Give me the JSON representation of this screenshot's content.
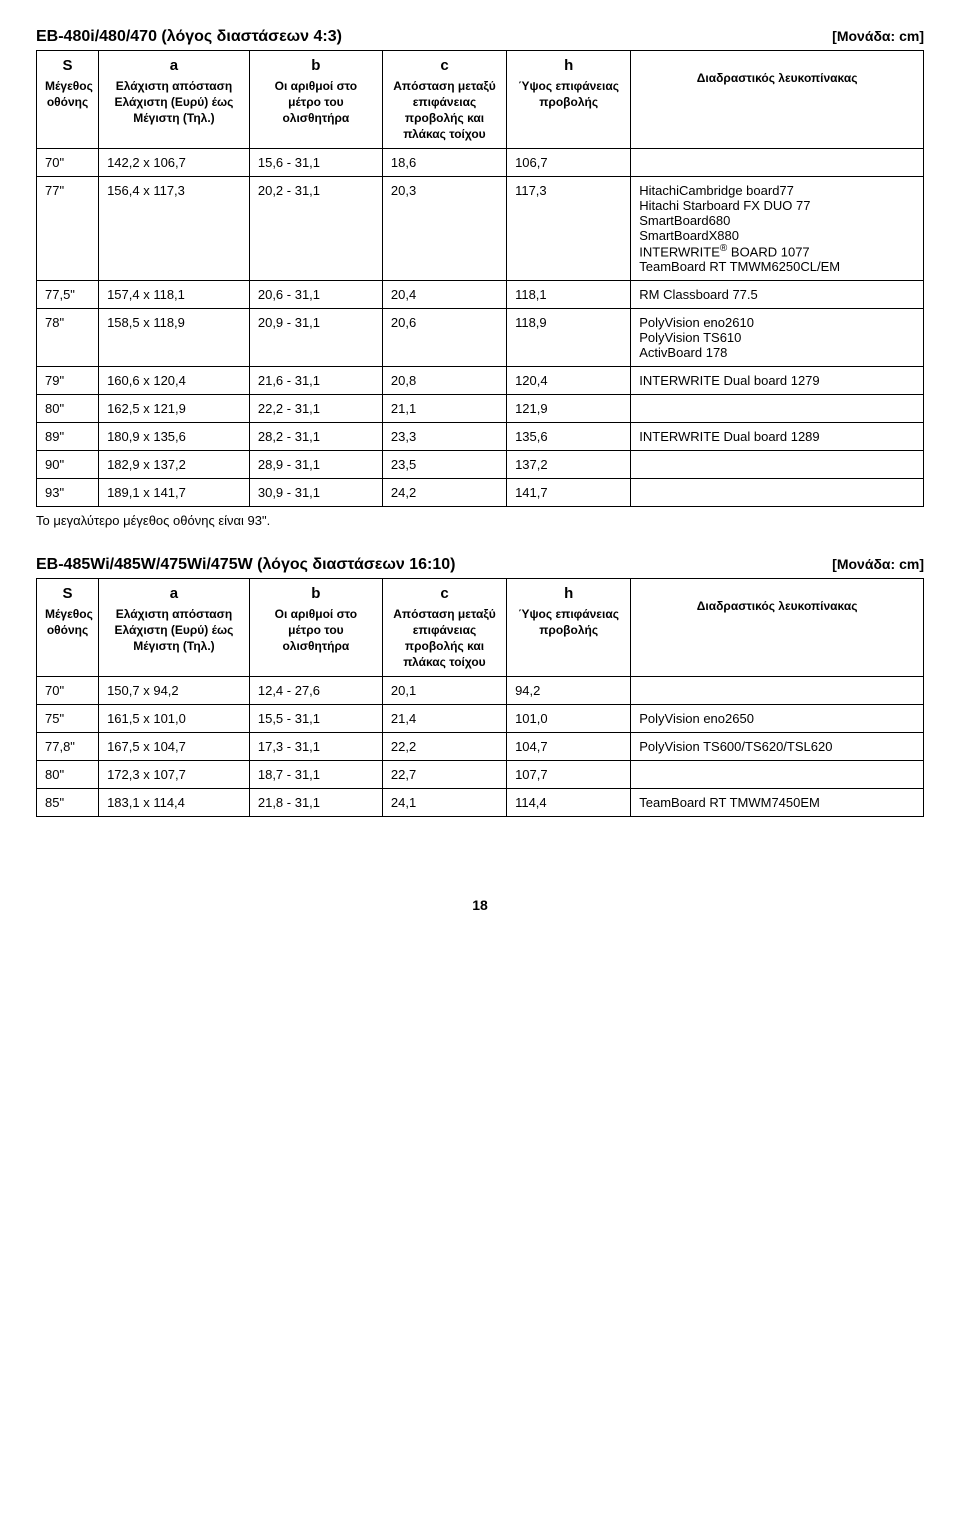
{
  "table1": {
    "title": "EB-480i/480/470 (λόγος διαστάσεων 4:3)",
    "unit": "[Μονάδα: cm]",
    "headers": {
      "s_letter": "S",
      "s_desc": "Μέγεθος οθόνης",
      "a_letter": "a",
      "a_desc": "Ελάχιστη απόσταση Ελάχιστη (Ευρύ) έως Μέγιστη (Τηλ.)",
      "b_letter": "b",
      "b_desc": "Οι αριθμοί στο μέτρο του ολισθητήρα",
      "c_letter": "c",
      "c_desc": "Απόσταση μεταξύ επιφάνειας προβολής και πλάκας τοίχου",
      "h_letter": "h",
      "h_desc": "Ύψος επιφάνειας προβολής",
      "w_desc": "Διαδραστικός λευκοπίνακας"
    },
    "rows": [
      {
        "s": "70\"",
        "a": "142,2 x 106,7",
        "b": "15,6 - 31,1",
        "c": "18,6",
        "h": "106,7",
        "w": ""
      },
      {
        "s": "77\"",
        "a": "156,4 x 117,3",
        "b": "20,2 - 31,1",
        "c": "20,3",
        "h": "117,3",
        "w": "HitachiCambridge board77\nHitachi Starboard FX DUO 77\nSmartBoard680\nSmartBoardX880\nINTERWRITE® BOARD 1077\nTeamBoard RT TMWM6250CL/EM"
      },
      {
        "s": "77,5\"",
        "a": "157,4 x 118,1",
        "b": "20,6 - 31,1",
        "c": "20,4",
        "h": "118,1",
        "w": "RM Classboard 77.5"
      },
      {
        "s": "78\"",
        "a": "158,5 x 118,9",
        "b": "20,9 - 31,1",
        "c": "20,6",
        "h": "118,9",
        "w": "PolyVision eno2610\nPolyVision TS610\nActivBoard 178"
      },
      {
        "s": "79\"",
        "a": "160,6 x 120,4",
        "b": "21,6 - 31,1",
        "c": "20,8",
        "h": "120,4",
        "w": "INTERWRITE Dual board 1279"
      },
      {
        "s": "80\"",
        "a": "162,5 x 121,9",
        "b": "22,2 - 31,1",
        "c": "21,1",
        "h": "121,9",
        "w": ""
      },
      {
        "s": "89\"",
        "a": "180,9 x 135,6",
        "b": "28,2 - 31,1",
        "c": "23,3",
        "h": "135,6",
        "w": "INTERWRITE Dual board 1289"
      },
      {
        "s": "90\"",
        "a": "182,9 x 137,2",
        "b": "28,9 - 31,1",
        "c": "23,5",
        "h": "137,2",
        "w": ""
      },
      {
        "s": "93\"",
        "a": "189,1 x 141,7",
        "b": "30,9 - 31,1",
        "c": "24,2",
        "h": "141,7",
        "w": ""
      }
    ],
    "note": "Το μεγαλύτερο μέγεθος οθόνης είναι 93\"."
  },
  "table2": {
    "title": "EB-485Wi/485W/475Wi/475W (λόγος διαστάσεων 16:10)",
    "unit": "[Μονάδα: cm]",
    "headers": {
      "s_letter": "S",
      "s_desc": "Μέγεθος οθόνης",
      "a_letter": "a",
      "a_desc": "Ελάχιστη απόσταση Ελάχιστη (Ευρύ) έως Μέγιστη (Τηλ.)",
      "b_letter": "b",
      "b_desc": "Οι αριθμοί στο μέτρο του ολισθητήρα",
      "c_letter": "c",
      "c_desc": "Απόσταση μεταξύ επιφάνειας προβολής και πλάκας τοίχου",
      "h_letter": "h",
      "h_desc": "Ύψος επιφάνειας προβολής",
      "w_desc": "Διαδραστικός λευκοπίνακας"
    },
    "rows": [
      {
        "s": "70\"",
        "a": "150,7 x 94,2",
        "b": "12,4 - 27,6",
        "c": "20,1",
        "h": "94,2",
        "w": ""
      },
      {
        "s": "75\"",
        "a": "161,5 x 101,0",
        "b": "15,5 - 31,1",
        "c": "21,4",
        "h": "101,0",
        "w": "PolyVision eno2650"
      },
      {
        "s": "77,8\"",
        "a": "167,5 x 104,7",
        "b": "17,3 - 31,1",
        "c": "22,2",
        "h": "104,7",
        "w": "PolyVision TS600/TS620/TSL620"
      },
      {
        "s": "80\"",
        "a": "172,3 x 107,7",
        "b": "18,7 - 31,1",
        "c": "22,7",
        "h": "107,7",
        "w": ""
      },
      {
        "s": "85\"",
        "a": "183,1 x 114,4",
        "b": "21,8 - 31,1",
        "c": "24,1",
        "h": "114,4",
        "w": "TeamBoard RT TMWM7450EM"
      }
    ]
  },
  "page_number": "18"
}
